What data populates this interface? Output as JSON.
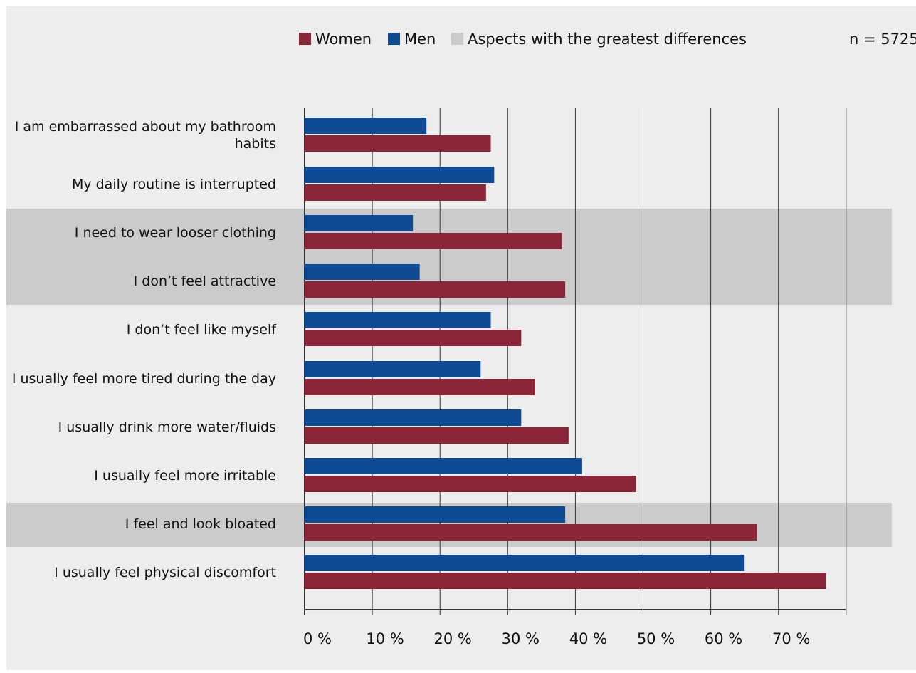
{
  "chart_data": {
    "type": "bar",
    "orientation": "horizontal",
    "sample_size_label": "n = 5725",
    "legend": {
      "placement": "top",
      "items": [
        {
          "label": "Women",
          "color": "#8b2639"
        },
        {
          "label": "Men",
          "color": "#0f4a94"
        },
        {
          "label": "Aspects with the greatest differences",
          "color": "#cbcbcb"
        }
      ]
    },
    "categories": [
      [
        "I am embarrassed about my bathroom",
        "habits"
      ],
      [
        "My daily routine is interrupted"
      ],
      [
        "I need to wear looser clothing"
      ],
      [
        "I don’t feel attractive"
      ],
      [
        "I don’t feel like myself"
      ],
      [
        "I usually feel more tired during the day"
      ],
      [
        "I usually drink more water/fluids"
      ],
      [
        "I usually feel more irritable"
      ],
      [
        "I feel and look bloated"
      ],
      [
        "I usually feel physical discomfort"
      ]
    ],
    "highlighted_categories": [
      2,
      3,
      8
    ],
    "series": [
      {
        "name": "Men",
        "color": "#0f4a94",
        "values": [
          18,
          28,
          16,
          17,
          27.5,
          26,
          32,
          41,
          38.5,
          65
        ]
      },
      {
        "name": "Women",
        "color": "#8b2639",
        "values": [
          27.5,
          26.8,
          38,
          38.5,
          32,
          34,
          39,
          49,
          66.8,
          77
        ]
      }
    ],
    "x_ticks": [
      "0 %",
      "10 %",
      "20 %",
      "30 %",
      "40 %",
      "50 %",
      "60 %",
      "70 %"
    ],
    "xlim": [
      0,
      80
    ],
    "grid": true,
    "colors": {
      "background": "#ededed",
      "highlight": "#cbcbcb",
      "gridline": "#333333"
    }
  }
}
